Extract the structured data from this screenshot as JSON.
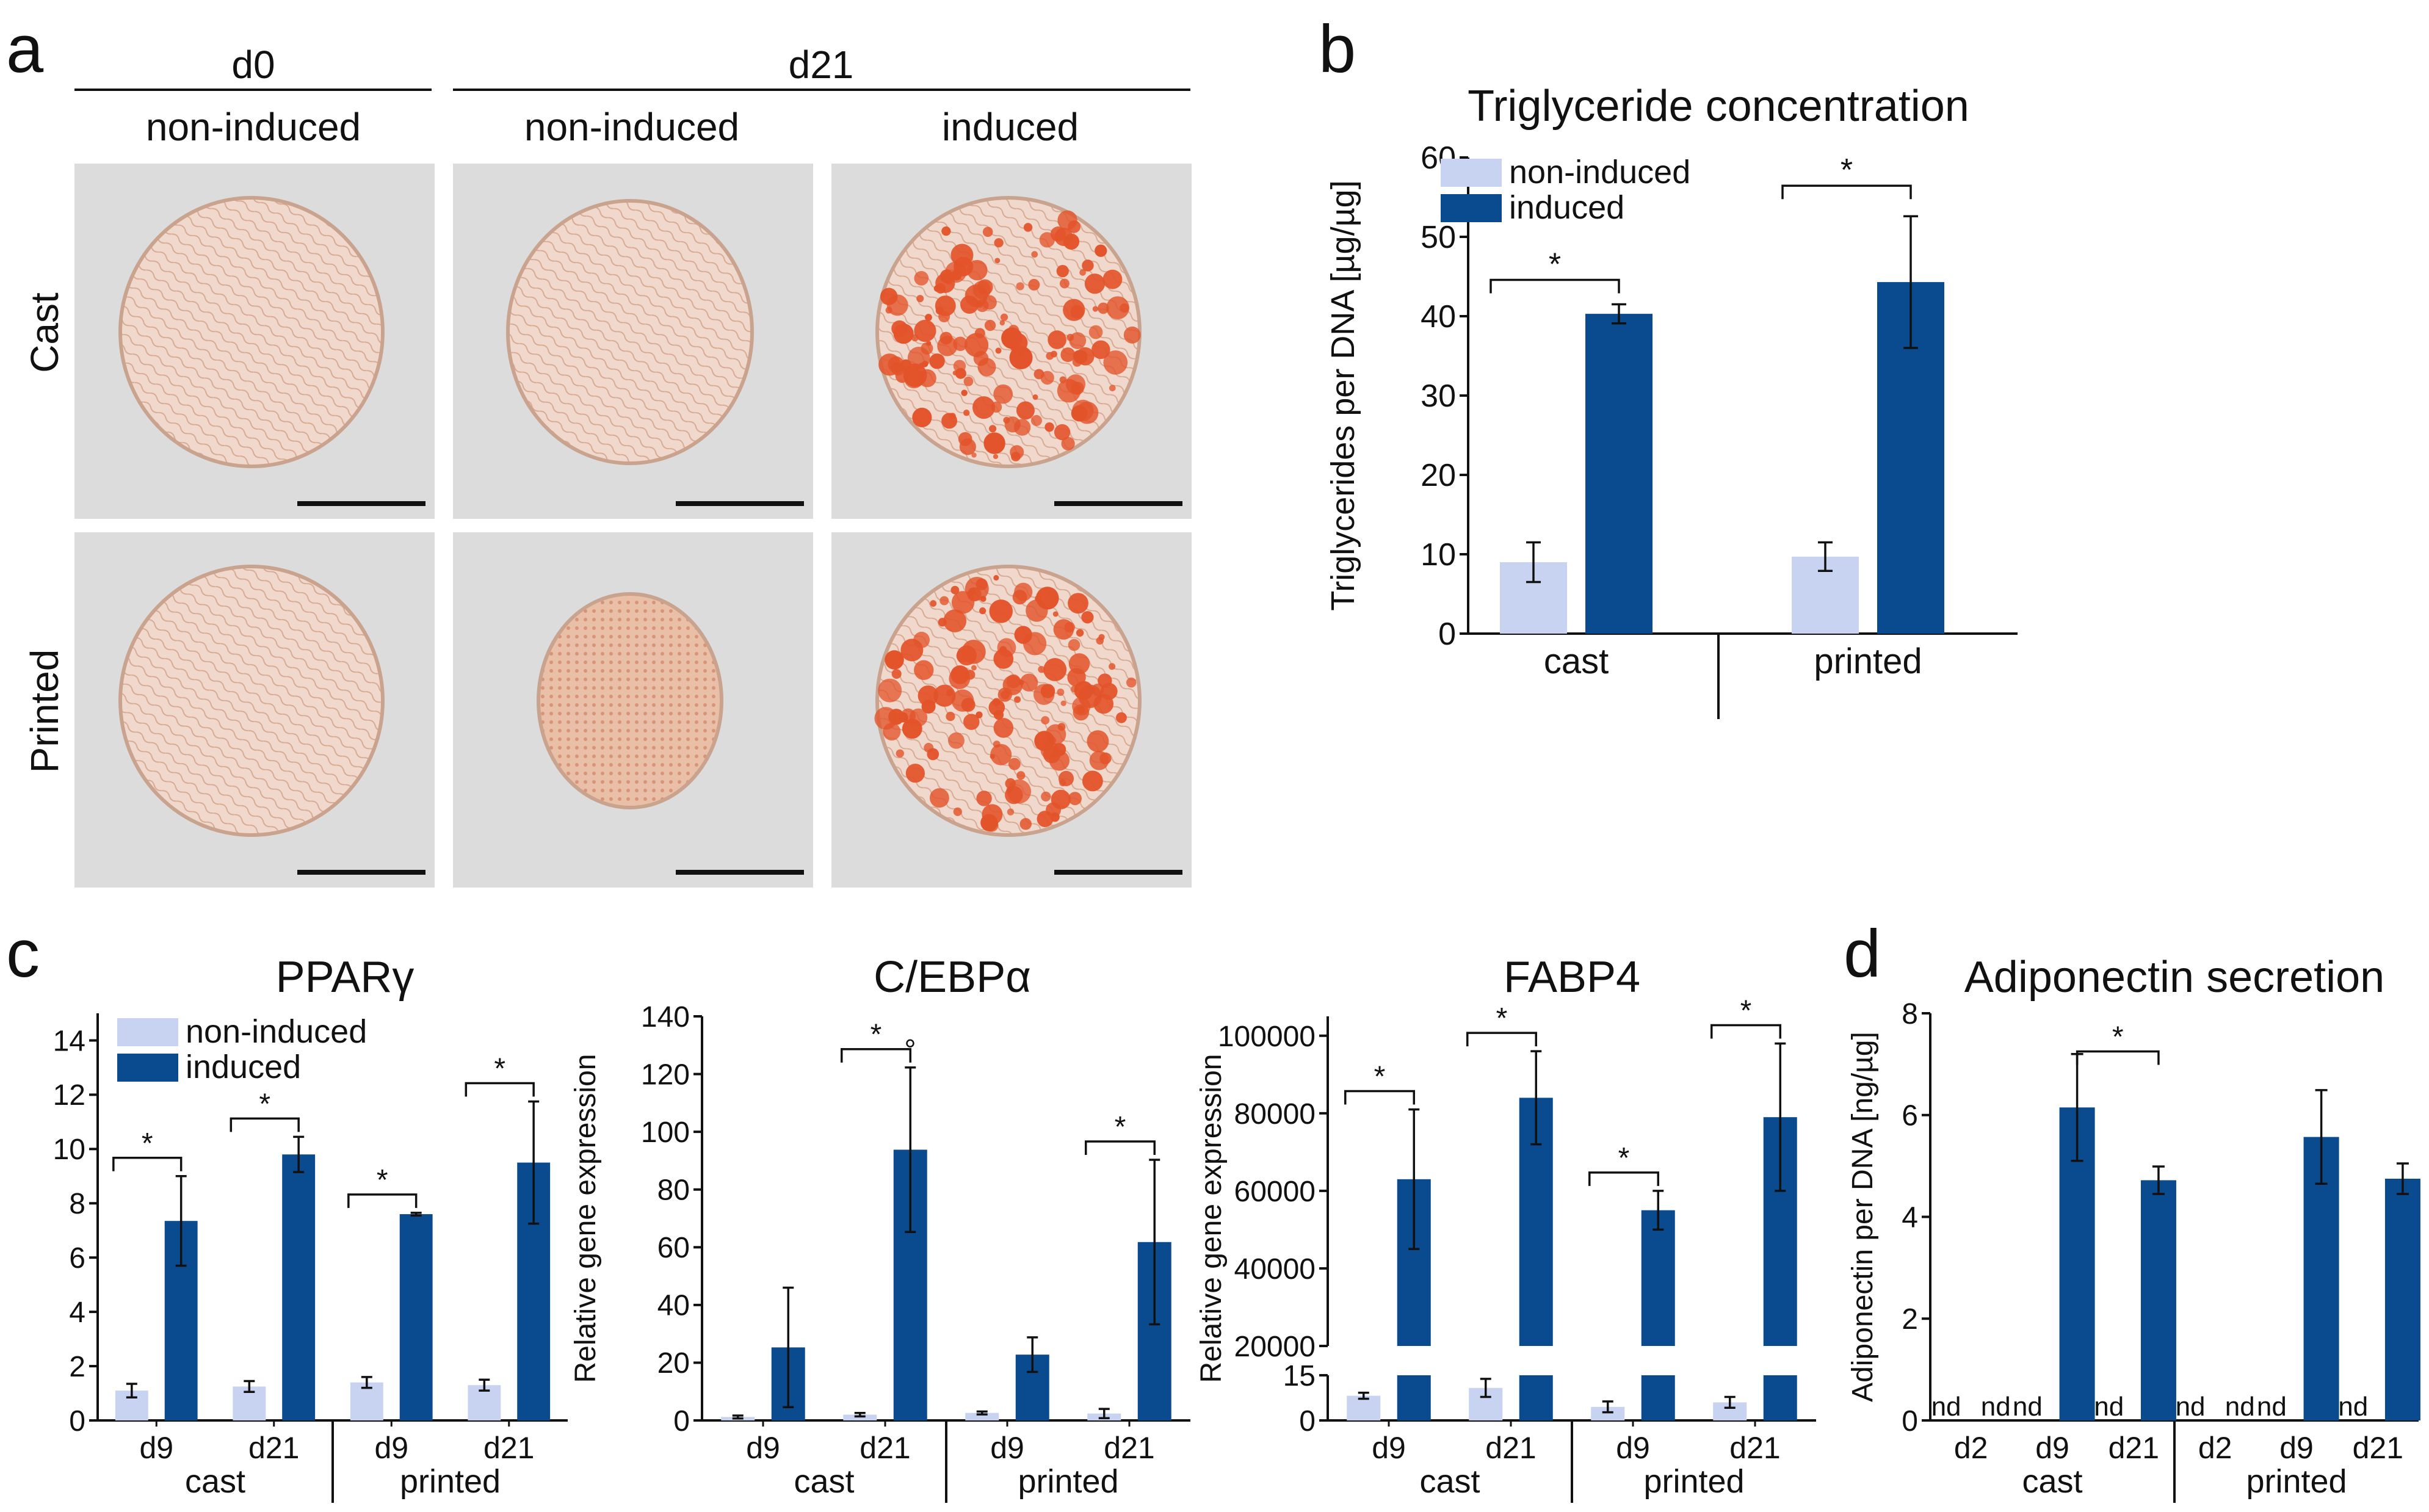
{
  "colors": {
    "non_induced": "#c7d3f1",
    "induced": "#0a4a8f",
    "stain": "#e3532a",
    "micrograph_bg": "#dcdcdc",
    "axis": "#111111"
  },
  "panels": {
    "a": {
      "letter": "a",
      "header_d0": "d0",
      "header_d21": "d21",
      "col_labels": [
        "non-induced",
        "non-induced",
        "induced"
      ],
      "row_labels": [
        "Cast",
        "Printed"
      ]
    },
    "b": {
      "letter": "b"
    },
    "c": {
      "letter": "c"
    },
    "d": {
      "letter": "d"
    }
  },
  "chart_data": [
    {
      "id": "triglyceride",
      "type": "bar",
      "title": "Triglyceride concentration",
      "ylabel": "Triglycerides per DNA [µg/µg]",
      "ylim": [
        0,
        60
      ],
      "yticks": [
        0,
        10,
        20,
        30,
        40,
        50,
        60
      ],
      "legend": [
        "non-induced",
        "induced"
      ],
      "legend_position": "top-left",
      "groups": [
        "cast",
        "printed"
      ],
      "series": [
        {
          "name": "non-induced",
          "values": [
            9.0,
            9.7
          ],
          "errors": [
            2.5,
            1.8
          ]
        },
        {
          "name": "induced",
          "values": [
            40.3,
            44.3
          ],
          "errors": [
            1.2,
            8.3
          ]
        }
      ],
      "significance": [
        "*",
        "*"
      ]
    },
    {
      "id": "ppar",
      "type": "bar",
      "title": "PPARγ",
      "ylabel": "Relative gene expression",
      "ylim": [
        0,
        15
      ],
      "yticks": [
        0,
        2,
        4,
        6,
        8,
        10,
        12,
        14
      ],
      "legend": [
        "non-induced",
        "induced"
      ],
      "legend_position": "top-left",
      "categories": [
        "d9",
        "d21",
        "d9",
        "d21"
      ],
      "groups": [
        "cast",
        "printed"
      ],
      "series": [
        {
          "name": "non-induced",
          "values": [
            1.1,
            1.25,
            1.4,
            1.3
          ],
          "errors": [
            0.25,
            0.2,
            0.2,
            0.2
          ]
        },
        {
          "name": "induced",
          "values": [
            7.35,
            9.8,
            7.6,
            9.5
          ],
          "errors": [
            1.65,
            0.65,
            0.05,
            2.25
          ]
        }
      ],
      "significance": [
        "*",
        "*",
        "*",
        "*"
      ]
    },
    {
      "id": "cebpa",
      "type": "bar",
      "title": "C/EBPα",
      "ylabel": "Relative gene expression",
      "ylim": [
        0,
        140
      ],
      "yticks": [
        0,
        20,
        40,
        60,
        80,
        100,
        120,
        140
      ],
      "categories": [
        "d9",
        "d21",
        "d9",
        "d21"
      ],
      "groups": [
        "cast",
        "printed"
      ],
      "series": [
        {
          "name": "non-induced",
          "values": [
            1.2,
            2.0,
            2.6,
            2.4
          ],
          "errors": [
            0.5,
            0.6,
            0.5,
            1.6
          ]
        },
        {
          "name": "induced",
          "values": [
            25.3,
            93.8,
            22.8,
            61.8
          ],
          "errors": [
            20.7,
            28.5,
            6.0,
            28.5
          ]
        }
      ],
      "significance": [
        "",
        "*",
        "",
        "*"
      ],
      "outlier_marker": "°"
    },
    {
      "id": "fabp4",
      "type": "bar",
      "title": "FABP4",
      "ylabel": "Relative gene expression",
      "broken_axis": true,
      "lower_ylim": [
        0,
        15
      ],
      "upper_ylim": [
        20000,
        105000
      ],
      "yticks_lower": [
        0,
        15
      ],
      "yticks_upper": [
        20000,
        40000,
        60000,
        80000,
        100000
      ],
      "ytick_labels_lower": [
        "0",
        "15"
      ],
      "ytick_labels_upper": [
        "20000",
        "40000",
        "60000",
        "80000",
        "100000"
      ],
      "categories": [
        "d9",
        "d21",
        "d9",
        "d21"
      ],
      "groups": [
        "cast",
        "printed"
      ],
      "series": [
        {
          "name": "non-induced",
          "values": [
            8.2,
            10.8,
            4.5,
            6.0
          ],
          "errors": [
            1.0,
            3.0,
            1.8,
            1.8
          ]
        },
        {
          "name": "induced",
          "values": [
            63000,
            84000,
            55000,
            79000
          ],
          "errors": [
            18000,
            12000,
            5000,
            19000
          ]
        }
      ],
      "significance": [
        "*",
        "*",
        "*",
        "*"
      ]
    },
    {
      "id": "adiponectin",
      "type": "bar",
      "title": "Adiponectin secretion",
      "ylabel": "Adiponectin per DNA [ng/µg]",
      "ylim": [
        0,
        8
      ],
      "yticks": [
        0,
        2,
        4,
        6,
        8
      ],
      "categories": [
        "d2",
        "d9",
        "d21",
        "d2",
        "d9",
        "d21"
      ],
      "groups": [
        "cast",
        "printed"
      ],
      "series": [
        {
          "name": "non-induced",
          "values": [
            null,
            null,
            null,
            null,
            null,
            null
          ],
          "errors": [
            0,
            0,
            0,
            0,
            0,
            0
          ]
        },
        {
          "name": "induced",
          "values": [
            null,
            6.15,
            4.72,
            null,
            5.57,
            4.75
          ],
          "errors": [
            0,
            1.05,
            0.27,
            0,
            0.92,
            0.3
          ]
        }
      ],
      "nd_label": "nd",
      "significance_bracket": {
        "from": 1,
        "to": 2,
        "label": "*"
      }
    }
  ]
}
